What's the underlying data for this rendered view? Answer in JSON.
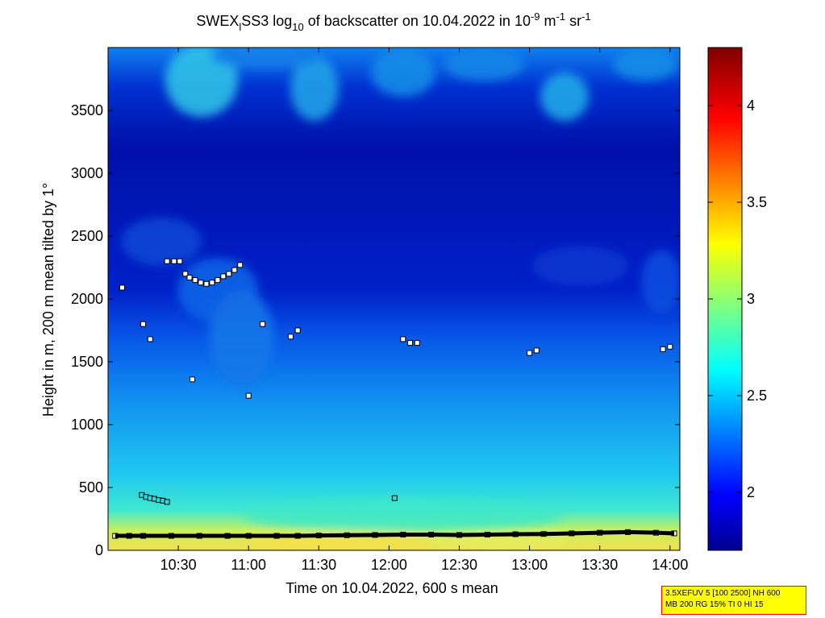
{
  "chart_data": {
    "type": "heatmap",
    "title": {
      "prefix": "SWEX",
      "sub_l": "l",
      "mid": "SS3 log",
      "sub_10": "10",
      "rest": " of backscatter on 10.04.2022 in 10",
      "sup_m9": "-9",
      "unit_m": " m",
      "sup_m1": "-1",
      "unit_sr": " sr",
      "sup_sr": "-1"
    },
    "xlabel": "Time on 10.04.2022, 600 s mean",
    "ylabel": "Height in m, 200 m mean tilted by 1°",
    "x_ticks": [
      "10:30",
      "11:00",
      "11:30",
      "12:00",
      "12:30",
      "13:00",
      "13:30",
      "14:00"
    ],
    "x_tick_hours": [
      10.5,
      11.0,
      11.5,
      12.0,
      12.5,
      13.0,
      13.5,
      14.0
    ],
    "xlim_hours": [
      10.0,
      14.07
    ],
    "y_ticks": [
      "0",
      "500",
      "1000",
      "1500",
      "2000",
      "2500",
      "3000",
      "3500"
    ],
    "y_tick_values": [
      0,
      500,
      1000,
      1500,
      2000,
      2500,
      3000,
      3500
    ],
    "ylim": [
      0,
      4000
    ],
    "colorbar": {
      "ticks": [
        "2",
        "2.5",
        "3",
        "3.5",
        "4"
      ],
      "tick_values": [
        2,
        2.5,
        3,
        3.5,
        4
      ],
      "range": [
        1.7,
        4.3
      ],
      "colormap": "jet"
    },
    "markers": [
      {
        "layer": "ground-layer",
        "t": [
          10.05,
          10.15,
          10.25,
          10.45,
          10.65,
          10.85,
          11.0,
          11.2,
          11.35,
          11.5,
          11.7,
          11.9,
          12.1,
          12.3,
          12.5,
          12.7,
          12.9,
          13.1,
          13.3,
          13.5,
          13.7,
          13.9,
          14.03
        ],
        "h": [
          115,
          115,
          115,
          115,
          115,
          115,
          115,
          115,
          115,
          118,
          120,
          122,
          125,
          125,
          122,
          125,
          128,
          130,
          135,
          140,
          145,
          140,
          135
        ]
      },
      {
        "layer": "low-cloud",
        "t": [
          10.24,
          10.27,
          10.3,
          10.33,
          10.36,
          10.39,
          10.42,
          12.04
        ],
        "h": [
          440,
          425,
          415,
          410,
          400,
          395,
          385,
          415
        ]
      },
      {
        "layer": "cloud-base-2200m",
        "t": [
          10.42,
          10.47,
          10.51,
          10.55,
          10.58,
          10.62,
          10.66,
          10.7,
          10.74,
          10.78,
          10.82,
          10.86,
          10.9,
          10.94
        ],
        "h": [
          2300,
          2300,
          2300,
          2200,
          2170,
          2150,
          2130,
          2120,
          2130,
          2150,
          2180,
          2200,
          2230,
          2270
        ]
      },
      {
        "layer": "scattered",
        "t": [
          10.1,
          10.25,
          10.3,
          10.6,
          11.0,
          11.1,
          11.3,
          11.35,
          12.1,
          12.15,
          12.2,
          13.0,
          13.05,
          13.95,
          14.0
        ],
        "h": [
          2090,
          1800,
          1680,
          1360,
          1230,
          1800,
          1700,
          1750,
          1680,
          1650,
          1650,
          1570,
          1590,
          1600,
          1620
        ]
      }
    ],
    "grid": false
  },
  "info_box": {
    "line1": "3.5XEFUV 5 [100 2500] NH 600",
    "line2": "MB 200 RG 15% TI 0 HI 15"
  }
}
